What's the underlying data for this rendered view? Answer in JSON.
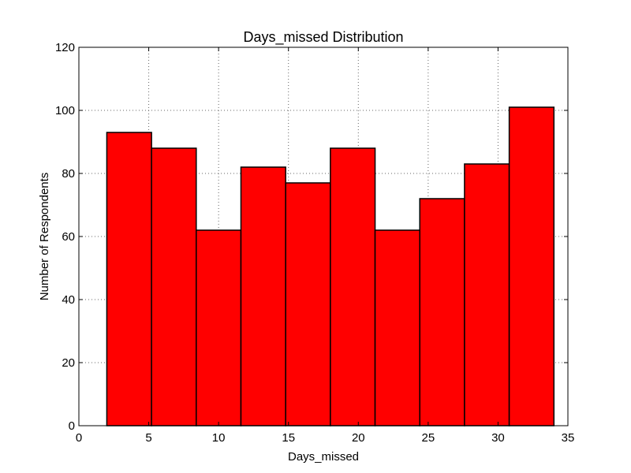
{
  "chart_data": {
    "type": "bar",
    "title": "Days_missed Distribution",
    "xlabel": "Days_missed",
    "ylabel": "Number of Respondents",
    "xlim": [
      0,
      35
    ],
    "ylim": [
      0,
      120
    ],
    "x_ticks": [
      0,
      5,
      10,
      15,
      20,
      25,
      30,
      35
    ],
    "y_ticks": [
      0,
      20,
      40,
      60,
      80,
      100,
      120
    ],
    "grid": true,
    "bar_color": "#ff0000",
    "edge_color": "#000000",
    "bins": [
      {
        "start": 2.0,
        "end": 5.2,
        "value": 93
      },
      {
        "start": 5.2,
        "end": 8.4,
        "value": 88
      },
      {
        "start": 8.4,
        "end": 11.6,
        "value": 62
      },
      {
        "start": 11.6,
        "end": 14.8,
        "value": 82
      },
      {
        "start": 14.8,
        "end": 18.0,
        "value": 77
      },
      {
        "start": 18.0,
        "end": 21.2,
        "value": 88
      },
      {
        "start": 21.2,
        "end": 24.4,
        "value": 62
      },
      {
        "start": 24.4,
        "end": 27.6,
        "value": 72
      },
      {
        "start": 27.6,
        "end": 30.8,
        "value": 83
      },
      {
        "start": 30.8,
        "end": 34.0,
        "value": 101
      }
    ]
  }
}
